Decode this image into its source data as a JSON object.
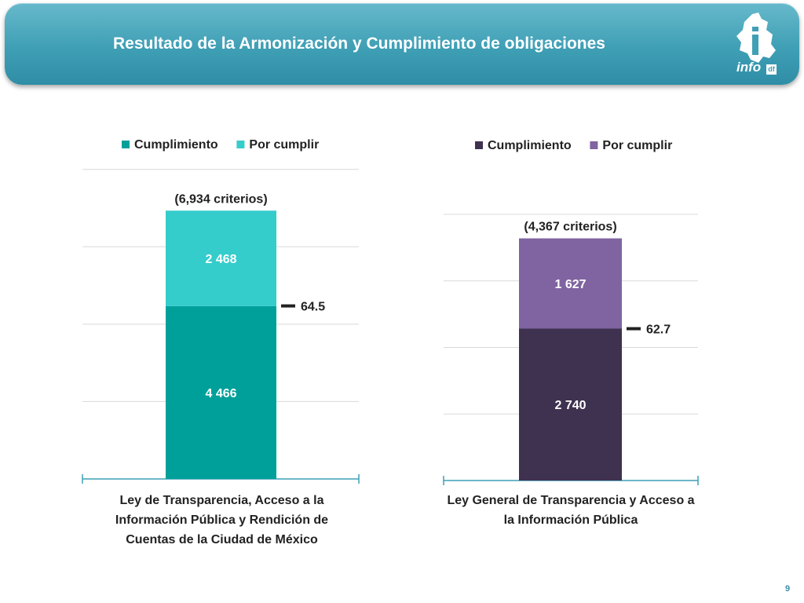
{
  "header": {
    "title": "Resultado de la Armonización y Cumplimiento de obligaciones",
    "logo_text": "info",
    "logo_badge": "df",
    "accent_color": "#3f9fb5"
  },
  "page_number": "9",
  "chart_data": [
    {
      "type": "bar",
      "stacked": true,
      "categories": [
        "Ley de Transparencia, Acceso a la Información Pública y Rendición de Cuentas de la Ciudad de México"
      ],
      "series": [
        {
          "name": "Cumplimiento",
          "values": [
            4466
          ],
          "value_labels": [
            "4 466"
          ],
          "color": "#00a09a"
        },
        {
          "name": "Por cumplir",
          "values": [
            2468
          ],
          "value_labels": [
            "2 468"
          ],
          "color": "#35cccc"
        }
      ],
      "total_label": "(6,934 criterios)",
      "percent_label": "64.5",
      "percent_value": 64.5,
      "ylim": [
        0,
        7000
      ],
      "gridlines": [
        0,
        2000,
        4000,
        6000,
        8000
      ],
      "legend_position": "top",
      "grid": true
    },
    {
      "type": "bar",
      "stacked": true,
      "categories": [
        "Ley General de Transparencia y Acceso a la Información Pública"
      ],
      "series": [
        {
          "name": "Cumplimiento",
          "values": [
            2740
          ],
          "value_labels": [
            "2 740"
          ],
          "color": "#3f3150"
        },
        {
          "name": "Por cumplir",
          "values": [
            1627
          ],
          "value_labels": [
            "1 627"
          ],
          "color": "#7f64a1"
        }
      ],
      "total_label": "(4,367 criterios)",
      "percent_label": "62.7",
      "percent_value": 62.7,
      "ylim": [
        0,
        4800
      ],
      "gridlines": [
        0,
        1200,
        2400,
        3600,
        4800
      ],
      "legend_position": "top",
      "grid": true
    }
  ]
}
